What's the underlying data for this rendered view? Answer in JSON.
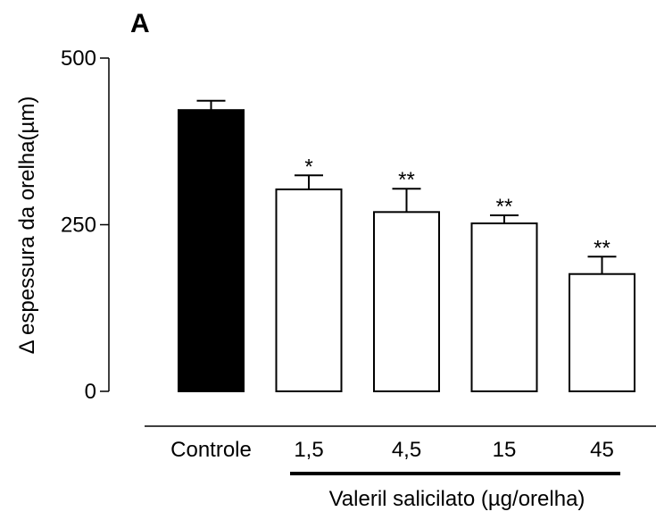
{
  "chart_data": {
    "type": "bar",
    "panel_label": "A",
    "ylabel": "Δ espessura da orelha(µm)",
    "xlabel": "Valeril salicilato (µg/orelha)",
    "ylim": [
      0,
      500
    ],
    "yticks": [
      "0",
      "250",
      "500"
    ],
    "categories": [
      "Controle",
      "1,5",
      "4,5",
      "15",
      "45"
    ],
    "values": [
      422,
      303,
      269,
      252,
      176
    ],
    "errors": [
      14,
      21,
      35,
      12,
      26
    ],
    "significance": [
      "",
      "*",
      "**",
      "**",
      "**"
    ],
    "bar_fill": [
      "#000000",
      "#ffffff",
      "#ffffff",
      "#ffffff",
      "#ffffff"
    ],
    "bar_stroke": "#000000"
  }
}
